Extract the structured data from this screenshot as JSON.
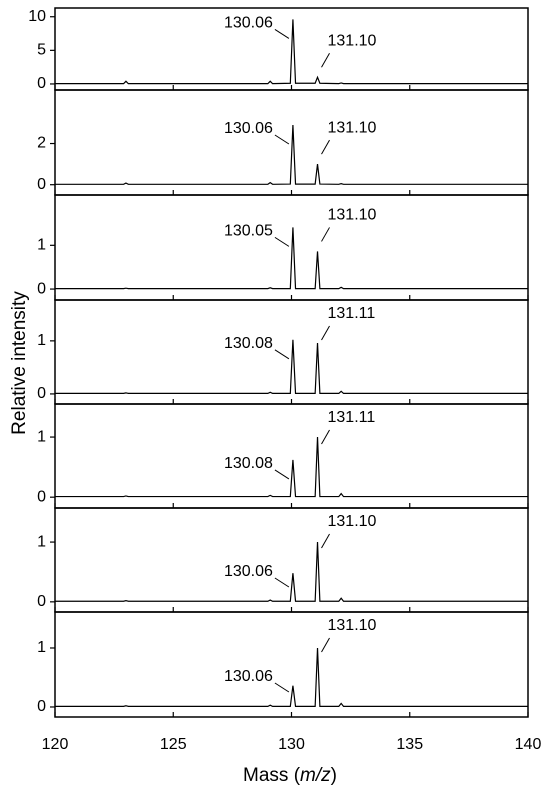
{
  "xlabel": [
    "Mass (",
    "m/z",
    ")"
  ],
  "ylabel": "Relative intensity",
  "chart_data": [
    {
      "type": "line",
      "color": "#000000",
      "x": [
        120,
        122.9,
        123,
        123.1,
        129,
        129.1,
        129.2,
        129.95,
        130.06,
        130.17,
        131.0,
        131.1,
        131.2,
        132.0,
        132.1,
        132.2,
        140
      ],
      "values": [
        0.05,
        0.05,
        0.4,
        0.05,
        0.05,
        0.4,
        0.05,
        0.1,
        9.6,
        0.1,
        0.1,
        1.0,
        0.1,
        0.05,
        0.15,
        0.05,
        0.05
      ],
      "xlim": [
        120,
        140
      ],
      "xticks": [
        120,
        125,
        130,
        135,
        140
      ],
      "ylim": [
        -0.9,
        11.3
      ],
      "yticks": [
        0,
        5,
        10
      ],
      "annotations": [
        "130.06",
        "131.10"
      ]
    },
    {
      "type": "line",
      "color": "#000000",
      "x": [
        120,
        122.9,
        123,
        123.1,
        129,
        129.1,
        129.2,
        129.95,
        130.06,
        130.17,
        131.0,
        131.1,
        131.2,
        132.0,
        132.1,
        132.2,
        140
      ],
      "values": [
        0.02,
        0.02,
        0.08,
        0.02,
        0.02,
        0.1,
        0.02,
        0.03,
        2.9,
        0.03,
        0.03,
        1.0,
        0.03,
        0.02,
        0.05,
        0.02,
        0.02
      ],
      "xlim": [
        120,
        140
      ],
      "xticks": [
        120,
        125,
        130,
        135,
        140
      ],
      "ylim": [
        -0.5,
        4.6
      ],
      "yticks": [
        0,
        2
      ],
      "annotations": [
        "130.06",
        "131.10"
      ]
    },
    {
      "type": "line",
      "color": "#000000",
      "x": [
        120,
        122.9,
        123,
        123.1,
        129,
        129.1,
        129.2,
        129.95,
        130.06,
        130.17,
        131.0,
        131.1,
        131.2,
        132.0,
        132.1,
        132.2,
        140
      ],
      "values": [
        0.01,
        0.01,
        0.02,
        0.01,
        0.01,
        0.03,
        0.01,
        0.01,
        1.41,
        0.01,
        0.01,
        0.86,
        0.01,
        0.01,
        0.04,
        0.01,
        0.01
      ],
      "xlim": [
        120,
        140
      ],
      "xticks": [
        120,
        125,
        130,
        135,
        140
      ],
      "ylim": [
        -0.25,
        2.15
      ],
      "yticks": [
        0,
        1
      ],
      "annotations": [
        "130.05",
        "131.10"
      ]
    },
    {
      "type": "line",
      "color": "#000000",
      "x": [
        120,
        122.9,
        123,
        123.1,
        129,
        129.1,
        129.2,
        129.95,
        130.06,
        130.17,
        131.0,
        131.1,
        131.2,
        132.0,
        132.1,
        132.2,
        140
      ],
      "values": [
        0.01,
        0.01,
        0.02,
        0.01,
        0.01,
        0.03,
        0.01,
        0.01,
        1.02,
        0.01,
        0.01,
        0.96,
        0.01,
        0.01,
        0.05,
        0.01,
        0.01
      ],
      "xlim": [
        120,
        140
      ],
      "xticks": [
        120,
        125,
        130,
        135,
        140
      ],
      "ylim": [
        -0.19,
        1.77
      ],
      "yticks": [
        0,
        1
      ],
      "annotations": [
        "130.08",
        "131.11"
      ]
    },
    {
      "type": "line",
      "color": "#000000",
      "x": [
        120,
        122.9,
        123,
        123.1,
        129,
        129.1,
        129.2,
        129.95,
        130.06,
        130.17,
        131.0,
        131.1,
        131.2,
        132.0,
        132.1,
        132.2,
        140
      ],
      "values": [
        0.01,
        0.01,
        0.02,
        0.01,
        0.01,
        0.03,
        0.01,
        0.01,
        0.62,
        0.01,
        0.01,
        1.0,
        0.01,
        0.01,
        0.06,
        0.01,
        0.01
      ],
      "xlim": [
        120,
        140
      ],
      "xticks": [
        120,
        125,
        130,
        135,
        140
      ],
      "ylim": [
        -0.18,
        1.55
      ],
      "yticks": [
        0,
        1
      ],
      "annotations": [
        "130.08",
        "131.11"
      ]
    },
    {
      "type": "line",
      "color": "#000000",
      "x": [
        120,
        122.9,
        123,
        123.1,
        129,
        129.1,
        129.2,
        129.95,
        130.06,
        130.17,
        131.0,
        131.1,
        131.2,
        132.0,
        132.1,
        132.2,
        140
      ],
      "values": [
        0.01,
        0.01,
        0.02,
        0.01,
        0.01,
        0.03,
        0.01,
        0.01,
        0.48,
        0.01,
        0.01,
        1.0,
        0.01,
        0.01,
        0.06,
        0.01,
        0.01
      ],
      "xlim": [
        120,
        140
      ],
      "xticks": [
        120,
        125,
        130,
        135,
        140
      ],
      "ylim": [
        -0.17,
        1.57
      ],
      "yticks": [
        0,
        1
      ],
      "annotations": [
        "130.06",
        "131.10"
      ]
    },
    {
      "type": "line",
      "color": "#000000",
      "x": [
        120,
        122.9,
        123,
        123.1,
        129,
        129.1,
        129.2,
        129.95,
        130.06,
        130.17,
        131.0,
        131.1,
        131.2,
        132.0,
        132.1,
        132.2,
        140
      ],
      "values": [
        0.01,
        0.01,
        0.02,
        0.01,
        0.01,
        0.03,
        0.01,
        0.01,
        0.36,
        0.01,
        0.01,
        1.0,
        0.01,
        0.01,
        0.06,
        0.01,
        0.01
      ],
      "xlim": [
        120,
        140
      ],
      "xticks": [
        120,
        125,
        130,
        135,
        140
      ],
      "ylim": [
        -0.17,
        1.61
      ],
      "yticks": [
        0,
        1
      ],
      "annotations": [
        "130.06",
        "131.10"
      ]
    }
  ]
}
